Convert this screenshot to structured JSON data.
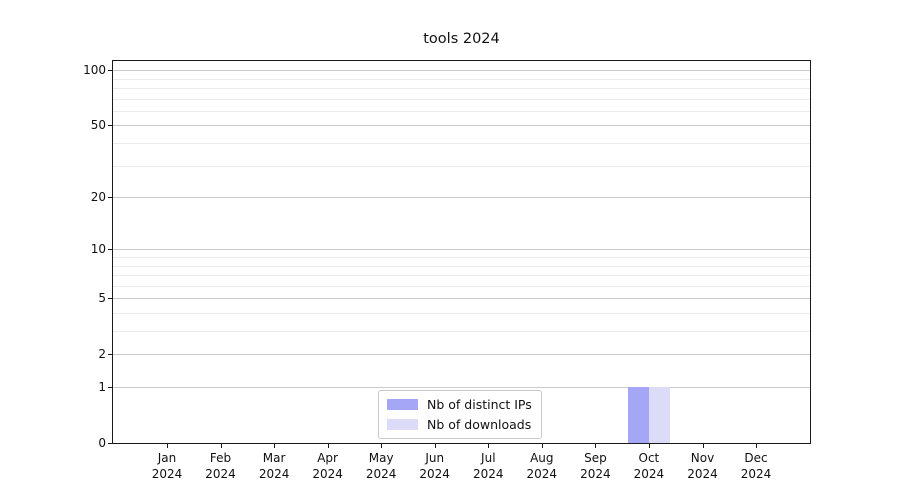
{
  "chart_data": {
    "type": "bar",
    "title": "tools 2024",
    "categories": [
      "Jan 2024",
      "Feb 2024",
      "Mar 2024",
      "Apr 2024",
      "May 2024",
      "Jun 2024",
      "Jul 2024",
      "Aug 2024",
      "Sep 2024",
      "Oct 2024",
      "Nov 2024",
      "Dec 2024"
    ],
    "series": [
      {
        "name": "Nb of distinct IPs",
        "color": "#a6a6f7",
        "values": [
          0,
          0,
          0,
          0,
          0,
          0,
          0,
          0,
          0,
          1,
          0,
          0
        ]
      },
      {
        "name": "Nb of downloads",
        "color": "#dcdcf9",
        "values": [
          0,
          0,
          0,
          0,
          0,
          0,
          0,
          0,
          0,
          1,
          0,
          0
        ]
      }
    ],
    "xlabel": "",
    "ylabel": "",
    "yscale": "log1p",
    "ylim": [
      0,
      112
    ],
    "yticks": [
      100,
      50,
      20,
      10,
      5,
      2,
      1,
      0
    ],
    "minor_yticks": [
      3,
      4,
      6,
      7,
      8,
      9,
      30,
      40,
      60,
      70,
      80,
      90
    ],
    "grid": "horizontal",
    "legend_position": "lower center",
    "bar_width_fraction": 0.4
  },
  "colors": {
    "spine": "#1a1a1a",
    "grid_major": "#cbcbcb",
    "grid_minor": "#ececec",
    "legend_border": "#c8c8c8",
    "background": "#ffffff",
    "text": "#111111"
  }
}
